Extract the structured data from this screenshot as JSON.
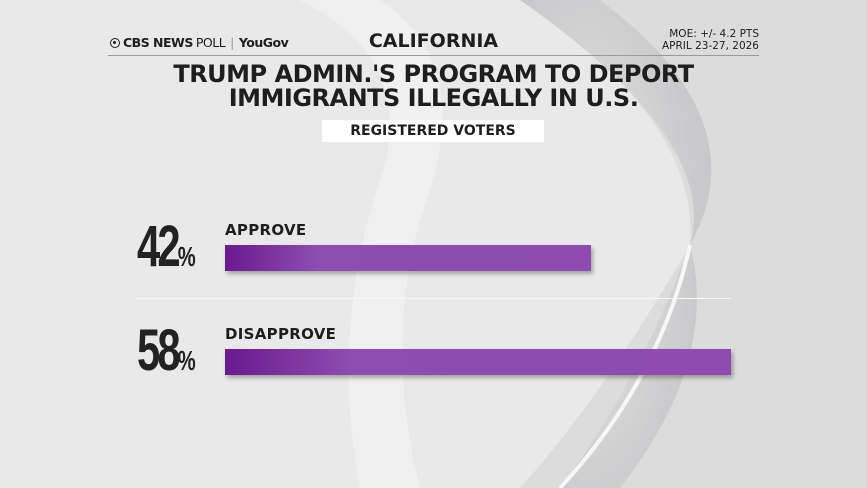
{
  "header": {
    "logo": {
      "brand": "CBS NEWS",
      "poll": "POLL",
      "partner": "YouGov"
    },
    "state": "CALIFORNIA",
    "moe": "MOE: +/- 4.2 PTS",
    "dates": "APRIL 23-27, 2026"
  },
  "colors": {
    "bar_start": "#6a1a8f",
    "bar_end": "#8f4bb0",
    "background": "#e9e9ea"
  },
  "chart_data": {
    "type": "bar",
    "orientation": "horizontal",
    "title": "TRUMP ADMIN.'S PROGRAM TO DEPORT IMMIGRANTS ILLEGALLY IN U.S.",
    "subtitle": "REGISTERED VOTERS",
    "categories": [
      "APPROVE",
      "DISAPPROVE"
    ],
    "values": [
      42,
      58
    ],
    "value_labels": [
      "42",
      "58"
    ],
    "unit": "%",
    "xlim": [
      0,
      58
    ]
  }
}
